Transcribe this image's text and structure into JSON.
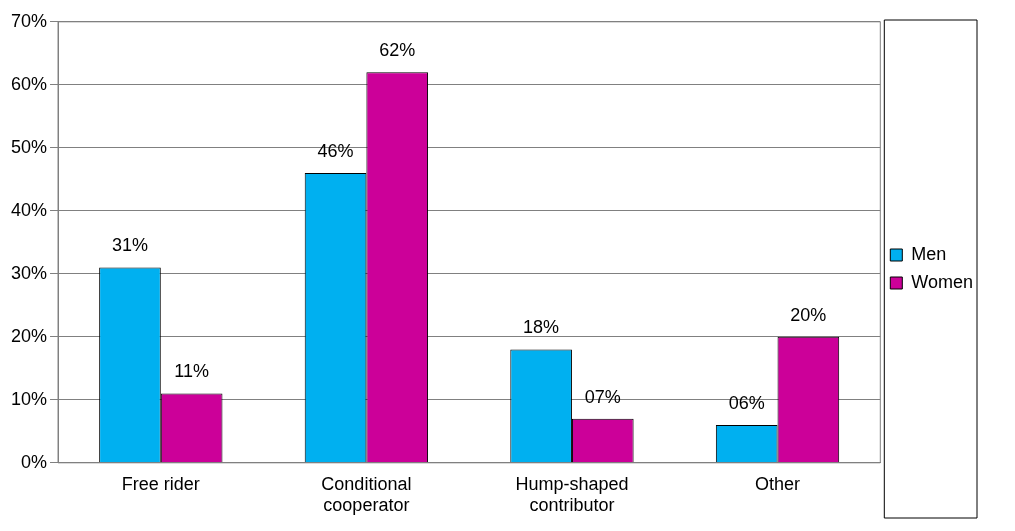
{
  "chart_data": {
    "type": "bar",
    "categories": [
      "Free rider",
      "Conditional cooperator",
      "Hump-shaped contributor",
      "Other"
    ],
    "series": [
      {
        "name": "Men",
        "color": "#00b0f0",
        "values": [
          31,
          46,
          18,
          6
        ],
        "value_labels": [
          "31%",
          "46%",
          "18%",
          "06%"
        ]
      },
      {
        "name": "Women",
        "color": "#cc0099",
        "values": [
          11,
          62,
          7,
          20
        ],
        "value_labels": [
          "11%",
          "62%",
          "07%",
          "20%"
        ]
      }
    ],
    "ylim": [
      0,
      70
    ],
    "yticks": [
      {
        "value": 0,
        "label": "0%"
      },
      {
        "value": 10,
        "label": "10%"
      },
      {
        "value": 20,
        "label": "20%"
      },
      {
        "value": 30,
        "label": "30%"
      },
      {
        "value": 40,
        "label": "40%"
      },
      {
        "value": 50,
        "label": "50%"
      },
      {
        "value": 60,
        "label": "60%"
      },
      {
        "value": 70,
        "label": "70%"
      }
    ],
    "grid": "y",
    "legend": "right"
  }
}
